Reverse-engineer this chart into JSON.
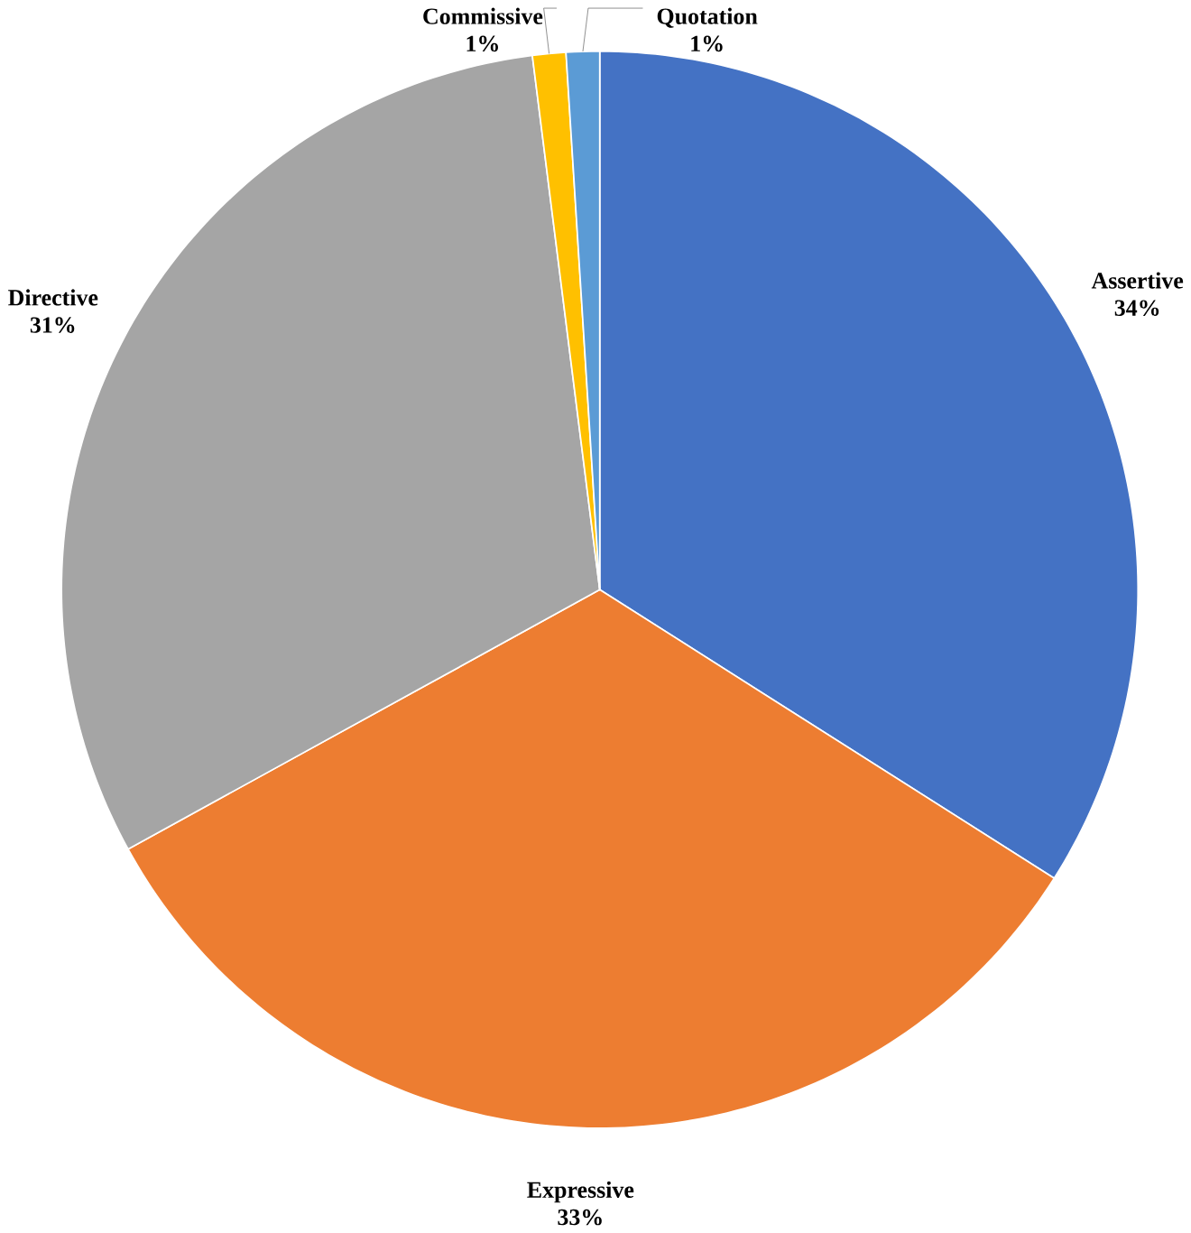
{
  "chart_data": {
    "type": "pie",
    "categories": [
      "Assertive",
      "Expressive",
      "Directive",
      "Commissive",
      "Quotation"
    ],
    "values": [
      34,
      33,
      31,
      1,
      1
    ],
    "colors": [
      "#4472c4",
      "#ed7d31",
      "#a5a5a5",
      "#ffc000",
      "#5b9bd5"
    ],
    "value_labels": [
      "34%",
      "33%",
      "31%",
      "1%",
      "1%"
    ]
  }
}
